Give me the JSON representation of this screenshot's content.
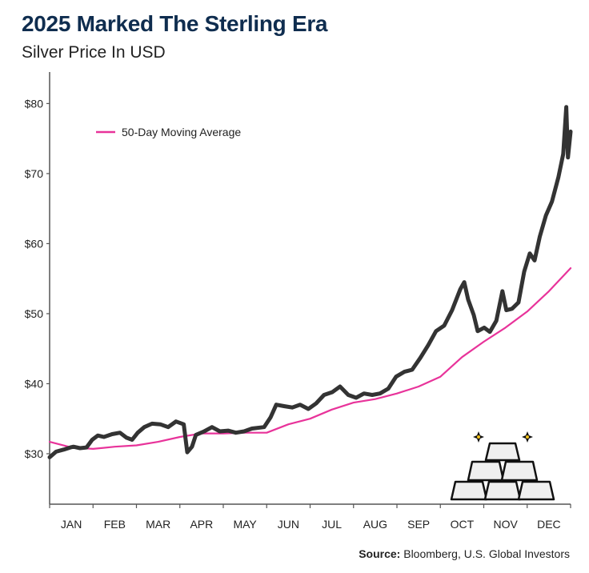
{
  "header": {
    "title": "2025 Marked The Sterling Era",
    "subtitle": "Silver Price In USD"
  },
  "source": {
    "label": "Source:",
    "text": "Bloomberg, U.S. Global Investors"
  },
  "colors": {
    "price_line": "#333333",
    "moving_average": "#e8339a",
    "title": "#0f2d4f",
    "axis": "#555555"
  },
  "decoration": {
    "icon": "silver-bars-stack-icon"
  },
  "chart_data": {
    "type": "line",
    "title": "2025 Marked The Sterling Era",
    "subtitle": "Silver Price In USD",
    "xlabel": "",
    "ylabel": "",
    "x_unit": "months elapsed since Jan 1, 2025",
    "categories": [
      "JAN",
      "FEB",
      "MAR",
      "APR",
      "MAY",
      "JUN",
      "JUL",
      "AUG",
      "SEP",
      "OCT",
      "NOV",
      "DEC"
    ],
    "xlim": [
      0,
      12
    ],
    "ylim": [
      22.8,
      84.5
    ],
    "yticks": [
      30,
      40,
      50,
      60,
      70,
      80
    ],
    "ytick_labels": [
      "$30",
      "$40",
      "$50",
      "$60",
      "$70",
      "$80"
    ],
    "grid": false,
    "legend": {
      "entries": [
        "50-Day Moving Average"
      ],
      "position": "top-left"
    },
    "series": [
      {
        "name": "Silver Price",
        "color": "#333333",
        "in_legend": false,
        "x": [
          0.0,
          0.15,
          0.33,
          0.48,
          0.55,
          0.7,
          0.85,
          0.98,
          1.11,
          1.25,
          1.44,
          1.62,
          1.77,
          1.9,
          2.03,
          2.18,
          2.36,
          2.55,
          2.73,
          2.91,
          3.09,
          3.17,
          3.28,
          3.37,
          3.56,
          3.74,
          3.92,
          4.11,
          4.29,
          4.48,
          4.66,
          4.94,
          5.09,
          5.22,
          5.4,
          5.59,
          5.77,
          5.96,
          6.14,
          6.32,
          6.51,
          6.69,
          6.88,
          7.06,
          7.24,
          7.43,
          7.61,
          7.8,
          7.98,
          8.17,
          8.35,
          8.54,
          8.72,
          8.9,
          9.09,
          9.27,
          9.46,
          9.55,
          9.64,
          9.77,
          9.86,
          10.01,
          10.14,
          10.29,
          10.43,
          10.52,
          10.65,
          10.8,
          10.93,
          11.06,
          11.17,
          11.29,
          11.43,
          11.57,
          11.72,
          11.83,
          11.9,
          11.94,
          12.0
        ],
        "y": [
          29.5,
          30.3,
          30.6,
          30.9,
          31.0,
          30.8,
          30.9,
          32.0,
          32.6,
          32.4,
          32.8,
          33.0,
          32.3,
          32.0,
          33.0,
          33.8,
          34.3,
          34.2,
          33.8,
          34.6,
          34.2,
          30.2,
          31.0,
          32.7,
          33.2,
          33.8,
          33.2,
          33.3,
          33.0,
          33.2,
          33.6,
          33.8,
          35.2,
          37.0,
          36.8,
          36.6,
          37.0,
          36.4,
          37.2,
          38.4,
          38.8,
          39.6,
          38.4,
          38.0,
          38.6,
          38.4,
          38.6,
          39.3,
          41.0,
          41.7,
          42.0,
          43.7,
          45.5,
          47.5,
          48.3,
          50.5,
          53.5,
          54.5,
          52.0,
          49.8,
          47.5,
          48.0,
          47.4,
          49.0,
          53.2,
          50.5,
          50.7,
          51.6,
          56.0,
          58.6,
          57.6,
          61.0,
          64.0,
          66.0,
          69.5,
          72.8,
          79.5,
          72.3,
          76.0
        ]
      },
      {
        "name": "50-Day Moving Average",
        "color": "#e8339a",
        "in_legend": true,
        "x": [
          0.0,
          0.5,
          1.0,
          1.5,
          2.0,
          2.5,
          3.0,
          3.5,
          4.0,
          4.5,
          5.0,
          5.5,
          6.0,
          6.5,
          7.0,
          7.5,
          8.0,
          8.5,
          9.0,
          9.5,
          10.0,
          10.5,
          11.0,
          11.5,
          12.0
        ],
        "y": [
          31.7,
          30.9,
          30.7,
          31.0,
          31.2,
          31.7,
          32.4,
          32.9,
          32.9,
          33.0,
          33.0,
          34.2,
          35.0,
          36.3,
          37.3,
          37.8,
          38.6,
          39.6,
          41.0,
          43.8,
          46.0,
          48.0,
          50.3,
          53.2,
          56.5
        ]
      }
    ]
  }
}
